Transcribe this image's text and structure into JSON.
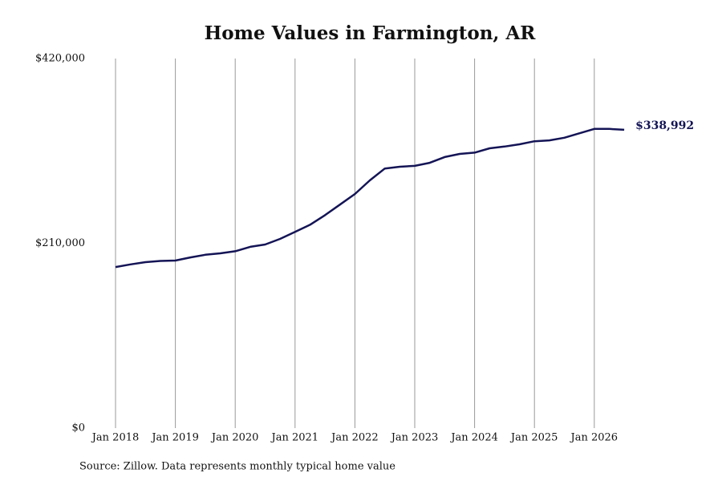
{
  "chart_data": {
    "type": "line",
    "title": "Home Values in Farmington, AR",
    "source": "Source: Zillow. Data represents monthly typical home value",
    "categories": [
      "Jan 2018",
      null,
      null,
      null,
      "Jan 2019",
      null,
      null,
      null,
      "Jan 2020",
      null,
      null,
      null,
      "Jan 2021",
      null,
      null,
      null,
      "Jan 2022",
      null,
      null,
      null,
      "Jan 2023",
      null,
      null,
      null,
      "Jan 2024",
      null,
      null,
      null,
      "Jan 2025",
      null,
      null,
      null,
      "Jan 2026",
      null,
      null
    ],
    "series": [
      {
        "name": "Home value",
        "color": "#141456",
        "values": [
          183000,
          186000,
          188600,
          190000,
          190400,
          194000,
          197000,
          198600,
          201000,
          206000,
          208600,
          215000,
          223000,
          231000,
          242000,
          254000,
          266000,
          281500,
          295000,
          297000,
          298000,
          301500,
          308000,
          311600,
          313000,
          318000,
          320000,
          322500,
          326000,
          327000,
          330000,
          335000,
          340000,
          340000,
          338992
        ],
        "value_labels": [
          null,
          null,
          null,
          null,
          null,
          null,
          null,
          null,
          null,
          null,
          null,
          null,
          null,
          null,
          null,
          null,
          null,
          null,
          null,
          null,
          null,
          null,
          null,
          null,
          null,
          null,
          null,
          null,
          null,
          null,
          null,
          null,
          null,
          null,
          "$338,992"
        ]
      }
    ],
    "ylim": [
      0,
      420000
    ],
    "yticks": [
      {
        "value": 0,
        "label": "$0"
      },
      {
        "value": 210000,
        "label": "$210,000"
      },
      {
        "value": 420000,
        "label": "$420,000"
      }
    ],
    "grid": true
  }
}
